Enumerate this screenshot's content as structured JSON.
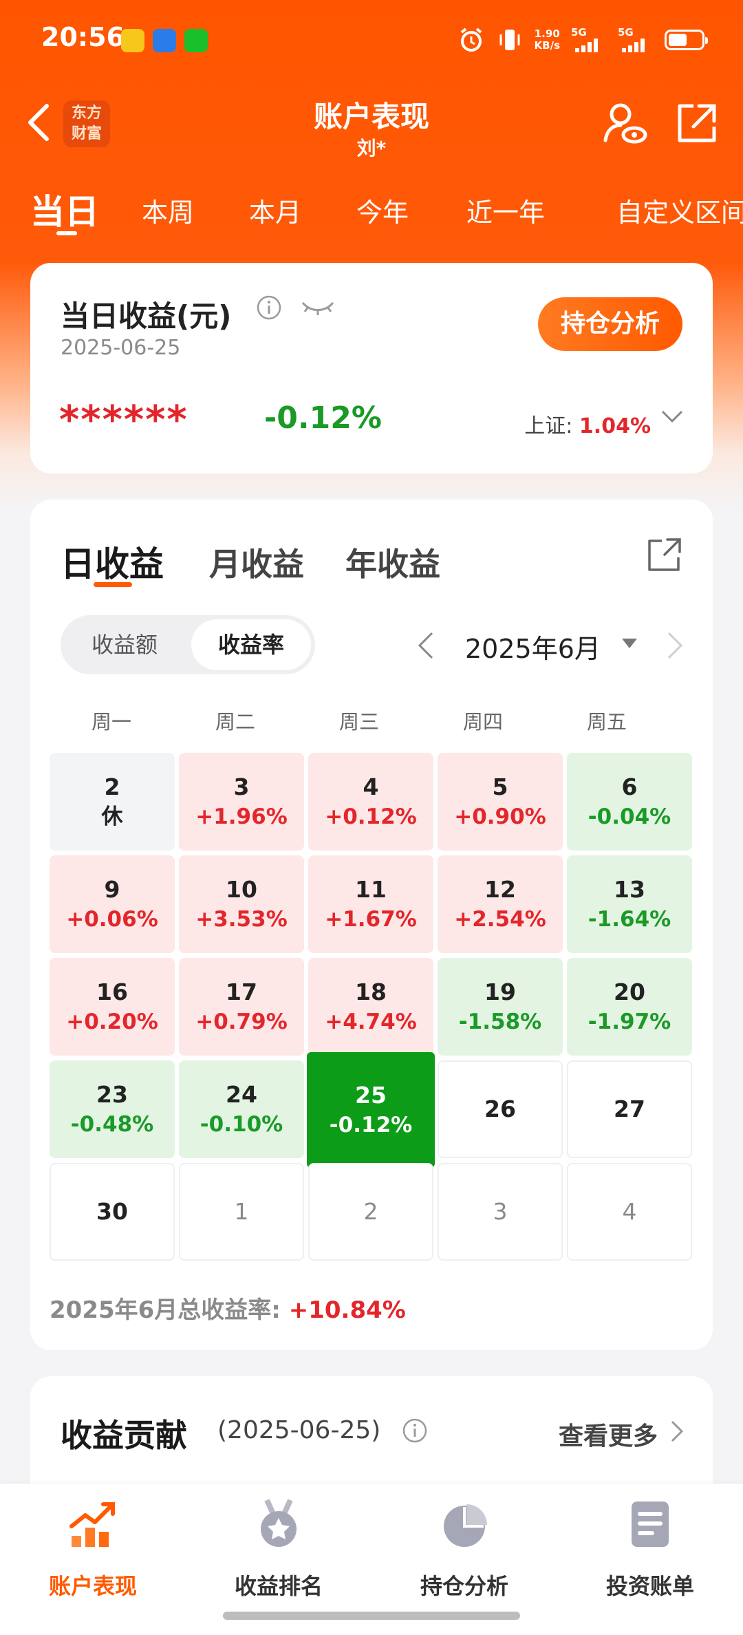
{
  "status_bar": {
    "time": "20:56",
    "net_speed_value": "1.90",
    "net_speed_unit": "KB/s",
    "signal1": "5G",
    "signal2": "5G"
  },
  "header": {
    "logo_line1": "东方",
    "logo_line2": "财富",
    "title": "账户表现",
    "subtitle": "刘*"
  },
  "period_tabs": [
    "当日",
    "本周",
    "本月",
    "今年",
    "近一年",
    "自定义区间"
  ],
  "daily_card": {
    "title": "当日收益(元)",
    "date": "2025-06-25",
    "hidden_amount": "******",
    "rate": "-0.12%",
    "index_label": "上证:",
    "index_value": "1.04%",
    "holding_button": "持仓分析"
  },
  "returns": {
    "tabs": [
      "日收益",
      "月收益",
      "年收益"
    ],
    "segment": [
      "收益额",
      "收益率"
    ],
    "month_label": "2025年6月",
    "weekdays": [
      "周一",
      "周二",
      "周三",
      "周四",
      "周五"
    ],
    "days": [
      {
        "day": "2",
        "rate": "休",
        "type": "rest"
      },
      {
        "day": "3",
        "rate": "+1.96%",
        "type": "pos"
      },
      {
        "day": "4",
        "rate": "+0.12%",
        "type": "pos"
      },
      {
        "day": "5",
        "rate": "+0.90%",
        "type": "pos"
      },
      {
        "day": "6",
        "rate": "-0.04%",
        "type": "neg"
      },
      {
        "day": "9",
        "rate": "+0.06%",
        "type": "pos"
      },
      {
        "day": "10",
        "rate": "+3.53%",
        "type": "pos"
      },
      {
        "day": "11",
        "rate": "+1.67%",
        "type": "pos"
      },
      {
        "day": "12",
        "rate": "+2.54%",
        "type": "pos"
      },
      {
        "day": "13",
        "rate": "-1.64%",
        "type": "neg"
      },
      {
        "day": "16",
        "rate": "+0.20%",
        "type": "pos"
      },
      {
        "day": "17",
        "rate": "+0.79%",
        "type": "pos"
      },
      {
        "day": "18",
        "rate": "+4.74%",
        "type": "pos"
      },
      {
        "day": "19",
        "rate": "-1.58%",
        "type": "neg"
      },
      {
        "day": "20",
        "rate": "-1.97%",
        "type": "neg"
      },
      {
        "day": "23",
        "rate": "-0.48%",
        "type": "neg"
      },
      {
        "day": "24",
        "rate": "-0.10%",
        "type": "neg"
      },
      {
        "day": "25",
        "rate": "-0.12%",
        "type": "sel"
      },
      {
        "day": "26",
        "rate": "",
        "type": "empty"
      },
      {
        "day": "27",
        "rate": "",
        "type": "empty"
      },
      {
        "day": "30",
        "rate": "",
        "type": "empty"
      },
      {
        "day": "1",
        "rate": "",
        "type": "next"
      },
      {
        "day": "2",
        "rate": "",
        "type": "next"
      },
      {
        "day": "3",
        "rate": "",
        "type": "next"
      },
      {
        "day": "4",
        "rate": "",
        "type": "next"
      }
    ],
    "total_label": "2025年6月总收益率:",
    "total_value": "+10.84%"
  },
  "contribution": {
    "title": "收益贡献",
    "date": "(2025-06-25)",
    "more": "查看更多"
  },
  "bottom_nav": [
    {
      "label": "账户表现",
      "icon": "trend-chart-icon",
      "active": true
    },
    {
      "label": "收益排名",
      "icon": "medal-icon",
      "active": false
    },
    {
      "label": "持仓分析",
      "icon": "pie-chart-icon",
      "active": false
    },
    {
      "label": "投资账单",
      "icon": "bill-icon",
      "active": false
    }
  ],
  "colors": {
    "brand": "#ff5500",
    "up": "#e3262b",
    "down": "#1a9a26",
    "selected": "#0c9c17"
  }
}
